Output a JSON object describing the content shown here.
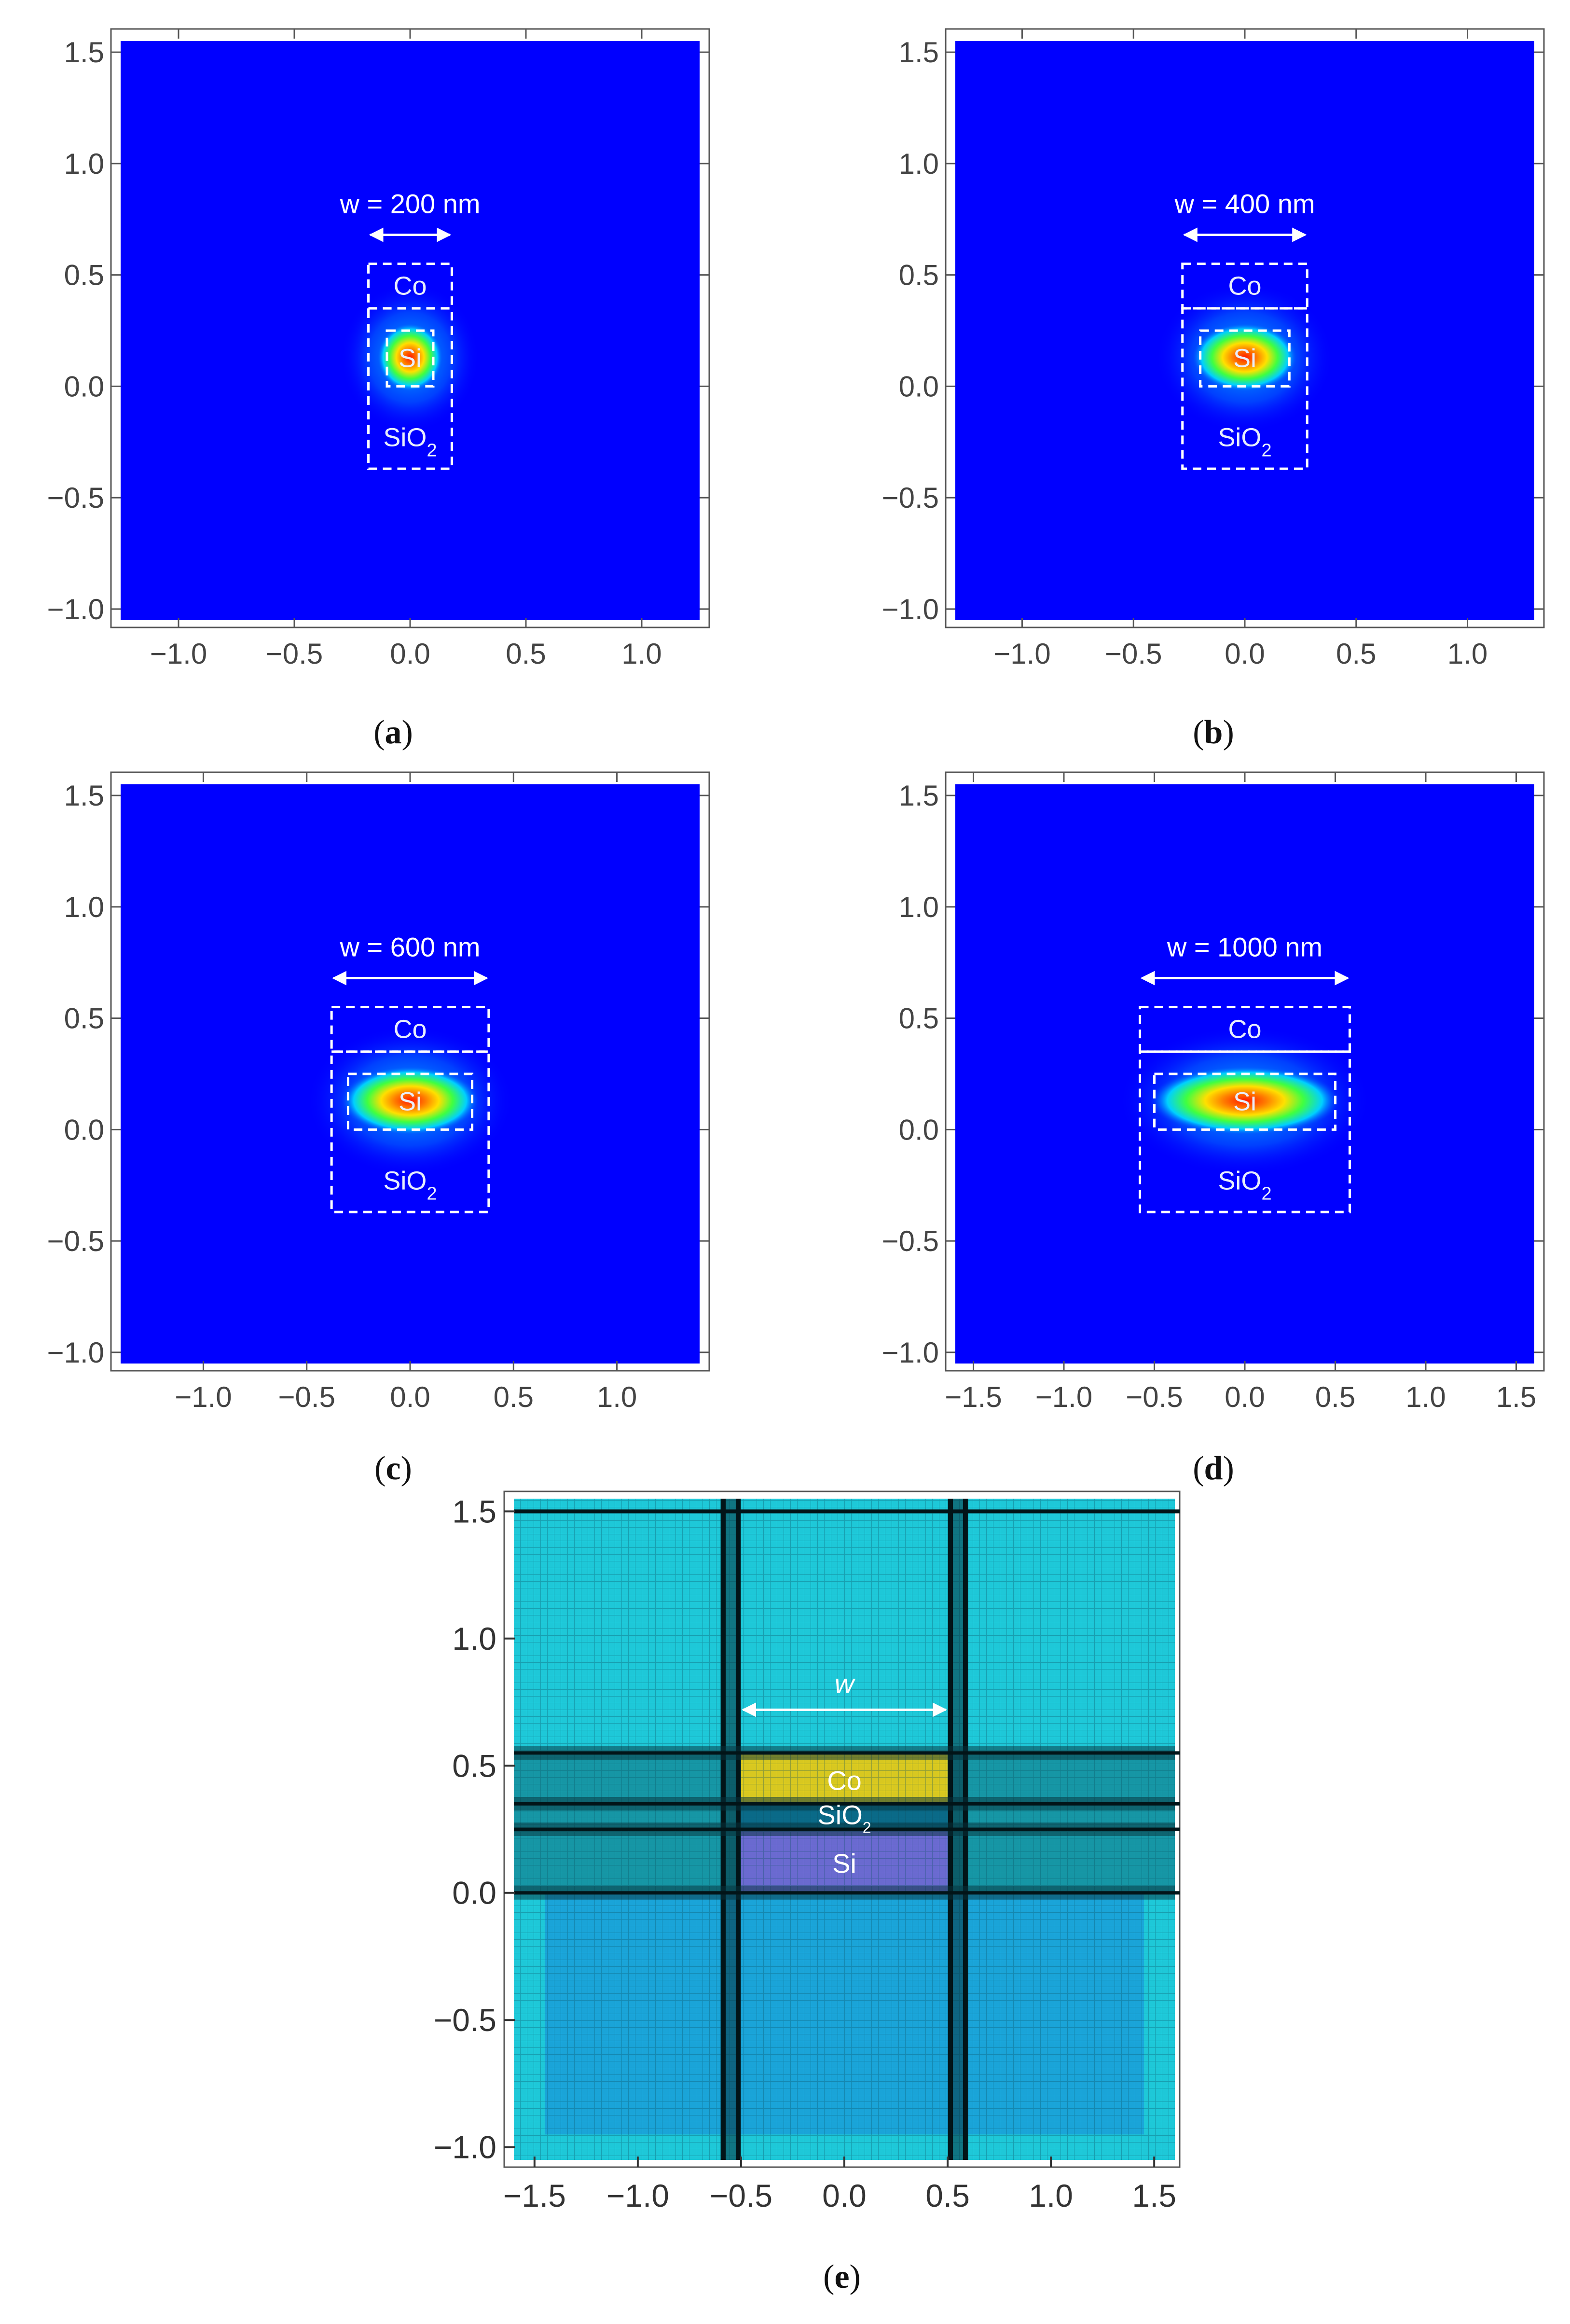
{
  "panels": [
    {
      "caption": "a",
      "width_label": "w = 200 nm",
      "width_um": 0.2,
      "xlim": [
        -1.25,
        1.25
      ],
      "xticks": [
        "-1.0",
        "-0.5",
        "0.0",
        "0.5",
        "1.0"
      ],
      "ylim": [
        -1.05,
        1.55
      ],
      "yticks": [
        "1.5",
        "1.0",
        "0.5",
        "0.0",
        "-0.5",
        "-1.0"
      ]
    },
    {
      "caption": "b",
      "width_label": "w = 400 nm",
      "width_um": 0.4,
      "xlim": [
        -1.3,
        1.3
      ],
      "xticks": [
        "-1.0",
        "-0.5",
        "0.0",
        "0.5",
        "1.0"
      ],
      "ylim": [
        -1.05,
        1.55
      ],
      "yticks": [
        "1.5",
        "1.0",
        "0.5",
        "0.0",
        "-0.5",
        "-1.0"
      ]
    },
    {
      "caption": "c",
      "width_label": "w = 600 nm",
      "width_um": 0.6,
      "xlim": [
        -1.4,
        1.4
      ],
      "xticks": [
        "-1.0",
        "-0.5",
        "0.0",
        "0.5",
        "1.0"
      ],
      "ylim": [
        -1.05,
        1.55
      ],
      "yticks": [
        "1.5",
        "1.0",
        "0.5",
        "0.0",
        "-0.5",
        "-1.0"
      ]
    },
    {
      "caption": "d",
      "width_label": "w = 1000 nm",
      "width_um": 1.0,
      "xlim": [
        -1.6,
        1.6
      ],
      "xticks": [
        "-1.5",
        "-1.0",
        "-0.5",
        "0.0",
        "0.5",
        "1.0",
        "1.5"
      ],
      "ylim": [
        -1.05,
        1.55
      ],
      "yticks": [
        "1.5",
        "1.0",
        "0.5",
        "0.0",
        "-0.5",
        "-1.0"
      ]
    }
  ],
  "materials": {
    "top": "Co",
    "core": "Si",
    "cladding": "SiO2"
  },
  "layers_um": {
    "si_bottom": 0.0,
    "si_top": 0.25,
    "sio2_top": 0.35,
    "co_top": 0.55,
    "sio2_bottom": -0.37
  },
  "mesh_panel": {
    "caption": "e",
    "width_label": "w",
    "xticks": [
      "-1.5",
      "-1.0",
      "-0.5",
      "0.0",
      "0.5",
      "1.0",
      "1.5"
    ],
    "yticks": [
      "1.5",
      "1.0",
      "0.5",
      "0.0",
      "-0.5",
      "-1.0"
    ],
    "labels": {
      "co": "Co",
      "sio2": "SiO",
      "sio2_sub": "2",
      "si": "Si"
    }
  },
  "colors": {
    "field_bg": "#0000ff",
    "field_peak": "#ff0000",
    "mesh_bg": "#1ec8d8",
    "co": "#d8c820",
    "si": "#6a6ad0",
    "sio2": "#0a6a88"
  }
}
